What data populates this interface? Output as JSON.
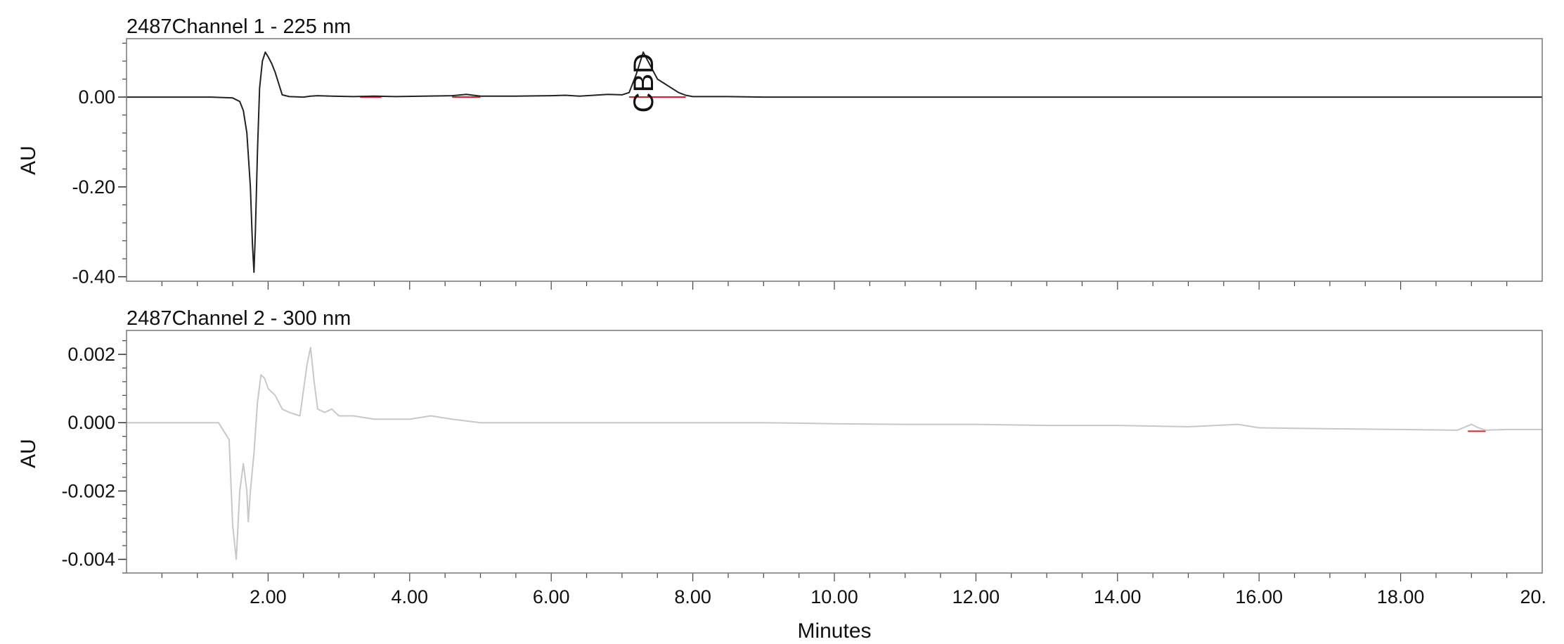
{
  "chart_data": [
    {
      "type": "line",
      "title": "2487Channel 1 - 225 nm",
      "xlabel": "",
      "ylabel": "AU",
      "xlim": [
        0.0,
        20.0
      ],
      "ylim": [
        -0.41,
        0.13
      ],
      "y_ticks": [
        {
          "value": 0.0,
          "label": "0.00"
        },
        {
          "value": -0.2,
          "label": "-0.20"
        },
        {
          "value": -0.4,
          "label": "-0.40"
        }
      ],
      "x_ticks": [],
      "grid": false,
      "legend": "none",
      "series": [
        {
          "color": "#222222",
          "x": [
            0.0,
            1.2,
            1.5,
            1.6,
            1.65,
            1.7,
            1.75,
            1.78,
            1.8,
            1.82,
            1.85,
            1.88,
            1.92,
            1.96,
            2.0,
            2.05,
            2.1,
            2.15,
            2.2,
            2.3,
            2.5,
            2.6,
            2.7,
            2.9,
            3.2,
            3.5,
            3.8,
            4.2,
            4.6,
            4.8,
            5.0,
            5.5,
            6.0,
            6.2,
            6.4,
            6.8,
            7.0,
            7.1,
            7.2,
            7.3,
            7.4,
            7.5,
            7.6,
            7.7,
            7.8,
            7.9,
            8.0,
            8.5,
            9.0,
            10.0,
            11.0,
            12.0,
            13.0,
            14.0,
            15.0,
            16.0,
            17.0,
            18.0,
            19.0,
            20.0
          ],
          "y": [
            0.0,
            0.0,
            -0.002,
            -0.01,
            -0.03,
            -0.08,
            -0.2,
            -0.33,
            -0.39,
            -0.3,
            -0.12,
            0.02,
            0.08,
            0.1,
            0.09,
            0.075,
            0.055,
            0.03,
            0.005,
            0.001,
            0.0,
            0.002,
            0.003,
            0.002,
            0.001,
            0.002,
            0.001,
            0.002,
            0.003,
            0.006,
            0.002,
            0.002,
            0.003,
            0.004,
            0.002,
            0.006,
            0.005,
            0.01,
            0.05,
            0.1,
            0.07,
            0.04,
            0.03,
            0.02,
            0.01,
            0.004,
            0.001,
            0.001,
            0.0,
            0.0,
            0.0,
            0.0,
            0.0,
            0.0,
            0.0,
            0.0,
            0.0,
            0.0,
            0.0,
            0.0
          ]
        }
      ],
      "integration_baselines": [
        {
          "color": "#e02020",
          "x": [
            3.3,
            3.6
          ],
          "y": [
            0.0,
            0.0
          ]
        },
        {
          "color": "#e02020",
          "x": [
            4.6,
            5.0
          ],
          "y": [
            0.0,
            0.0
          ]
        },
        {
          "color": "#e02020",
          "x": [
            7.1,
            7.9
          ],
          "y": [
            0.0,
            0.0
          ]
        }
      ],
      "annotations": [
        {
          "text": "CBD",
          "x": 7.3,
          "y": 0.0,
          "rotation": -90
        }
      ]
    },
    {
      "type": "line",
      "title": "2487Channel 2 - 300 nm",
      "xlabel": "Minutes",
      "ylabel": "AU",
      "xlim": [
        0.0,
        20.0
      ],
      "ylim": [
        -0.0044,
        0.0027
      ],
      "y_ticks": [
        {
          "value": 0.002,
          "label": "0.002"
        },
        {
          "value": 0.0,
          "label": "0.000"
        },
        {
          "value": -0.002,
          "label": "-0.002"
        },
        {
          "value": -0.004,
          "label": "-0.004"
        }
      ],
      "x_ticks": [
        {
          "value": 2.0,
          "label": "2.00"
        },
        {
          "value": 4.0,
          "label": "4.00"
        },
        {
          "value": 6.0,
          "label": "6.00"
        },
        {
          "value": 8.0,
          "label": "8.00"
        },
        {
          "value": 10.0,
          "label": "10.00"
        },
        {
          "value": 12.0,
          "label": "12.00"
        },
        {
          "value": 14.0,
          "label": "14.00"
        },
        {
          "value": 16.0,
          "label": "16.00"
        },
        {
          "value": 18.0,
          "label": "18.00"
        },
        {
          "value": 20.0,
          "label": "20."
        }
      ],
      "grid": false,
      "legend": "none",
      "series": [
        {
          "color": "#c8c8c8",
          "x": [
            0.0,
            0.5,
            1.0,
            1.3,
            1.45,
            1.5,
            1.55,
            1.6,
            1.65,
            1.7,
            1.72,
            1.75,
            1.8,
            1.85,
            1.9,
            1.95,
            2.0,
            2.1,
            2.2,
            2.3,
            2.45,
            2.55,
            2.6,
            2.65,
            2.7,
            2.8,
            2.9,
            3.0,
            3.2,
            3.5,
            4.0,
            4.3,
            4.6,
            5.0,
            6.0,
            7.0,
            8.0,
            9.0,
            10.0,
            11.0,
            12.0,
            13.0,
            14.0,
            15.0,
            15.7,
            16.0,
            17.0,
            18.0,
            18.8,
            19.0,
            19.1,
            19.2,
            19.5,
            20.0
          ],
          "y": [
            0.0,
            0.0,
            0.0,
            0.0,
            -0.0005,
            -0.003,
            -0.004,
            -0.002,
            -0.0012,
            -0.002,
            -0.0029,
            -0.002,
            -0.0009,
            0.0006,
            0.0014,
            0.0013,
            0.001,
            0.0008,
            0.0004,
            0.0003,
            0.0002,
            0.0017,
            0.0022,
            0.0012,
            0.0004,
            0.0003,
            0.0004,
            0.0002,
            0.0002,
            0.0001,
            0.0001,
            0.0002,
            0.0001,
            0.0,
            0.0,
            0.0,
            0.0,
            0.0,
            -3e-05,
            -5e-05,
            -5e-05,
            -8e-05,
            -8e-05,
            -0.00012,
            -5e-05,
            -0.00015,
            -0.00018,
            -0.0002,
            -0.00022,
            -5e-05,
            -0.00015,
            -0.00022,
            -0.0002,
            -0.0002
          ]
        }
      ],
      "integration_baselines": [
        {
          "color": "#e02020",
          "x": [
            18.95,
            19.2
          ],
          "y": [
            -0.00025,
            -0.00025
          ]
        }
      ],
      "annotations": []
    }
  ]
}
